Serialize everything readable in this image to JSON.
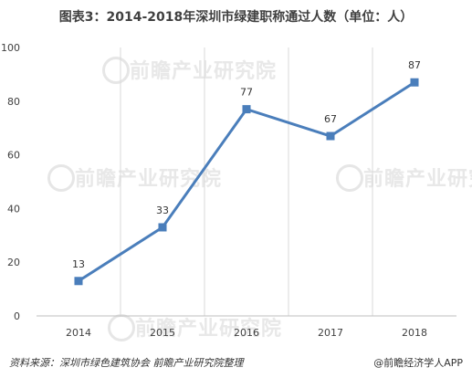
{
  "chart_data": {
    "type": "line",
    "title": "图表3：2014-2018年深圳市绿建职称通过人数（单位：人）",
    "categories": [
      "2014",
      "2015",
      "2016",
      "2017",
      "2018"
    ],
    "values": [
      13,
      33,
      77,
      67,
      87
    ],
    "ylim": [
      0,
      100
    ],
    "yticks": [
      "0",
      "20",
      "40",
      "60",
      "80",
      "100"
    ],
    "grid": "vertical",
    "line_color": "#4a7ebb",
    "marker_color": "#4a7ebb"
  },
  "footer": {
    "source": "资料来源：深圳市绿色建筑协会 前瞻产业研究院整理",
    "credit": "@前瞻经济学人APP"
  },
  "watermark": {
    "text": "前瞻产业研究院"
  }
}
